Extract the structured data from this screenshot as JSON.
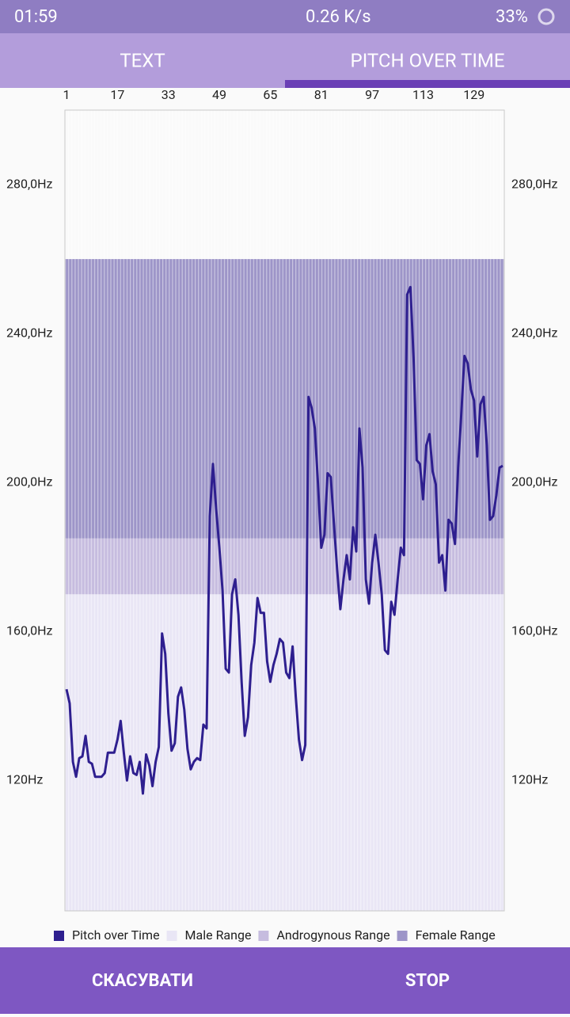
{
  "status_bar": {
    "time": "01:59",
    "speed": "0.26 K/s",
    "battery": "33%"
  },
  "tabs": [
    {
      "label": "TEXT"
    },
    {
      "label": "PITCH OVER TIME"
    }
  ],
  "chart_data": {
    "type": "line",
    "x": [
      1,
      2,
      3,
      4,
      5,
      6,
      7,
      8,
      9,
      10,
      11,
      12,
      13,
      14,
      15,
      16,
      17,
      18,
      19,
      20,
      21,
      22,
      23,
      24,
      25,
      26,
      27,
      28,
      29,
      30,
      31,
      32,
      33,
      34,
      35,
      36,
      37,
      38,
      39,
      40,
      41,
      42,
      43,
      44,
      45,
      46,
      47,
      48,
      49,
      50,
      51,
      52,
      53,
      54,
      55,
      56,
      57,
      58,
      59,
      60,
      61,
      62,
      63,
      64,
      65,
      66,
      67,
      68,
      69,
      70,
      71,
      72,
      73,
      74,
      75,
      76,
      77,
      78,
      79,
      80,
      81,
      82,
      83,
      84,
      85,
      86,
      87,
      88,
      89,
      90,
      91,
      92,
      93,
      94,
      95,
      96,
      97,
      98,
      99,
      100,
      101,
      102,
      103,
      104,
      105,
      106,
      107,
      108,
      109,
      110,
      111,
      112,
      113,
      114,
      115,
      116,
      117,
      118,
      119,
      120,
      121,
      122,
      123,
      124,
      125,
      126,
      127,
      128,
      129,
      130,
      131,
      132,
      133,
      134,
      135,
      136,
      137,
      138
    ],
    "xlim": [
      0.5,
      138.5
    ],
    "xticks": [
      1,
      17,
      33,
      49,
      65,
      81,
      97,
      113,
      129
    ],
    "ylim": [
      85,
      300
    ],
    "yticks": [
      {
        "value": 120,
        "label": "120Hz"
      },
      {
        "value": 160,
        "label": "160,0Hz"
      },
      {
        "value": 200,
        "label": "200,0Hz"
      },
      {
        "value": 240,
        "label": "240,0Hz"
      },
      {
        "value": 280,
        "label": "280,0Hz"
      }
    ],
    "series": [
      {
        "name": "Pitch over Time",
        "color": "#2e1f8f",
        "values": [
          144.5,
          140.7,
          125,
          121,
          126,
          126.5,
          132,
          125,
          124.5,
          121,
          121,
          121,
          122,
          127.5,
          127.5,
          127.5,
          131,
          136,
          127.5,
          120,
          126.5,
          122,
          121.5,
          125,
          116.5,
          127,
          124,
          118.5,
          125,
          129,
          159.5,
          154,
          138,
          128,
          130,
          142.5,
          145,
          139,
          128.5,
          123,
          125,
          126,
          125.5,
          135,
          134,
          191,
          205,
          193,
          182.5,
          171,
          150,
          149,
          170,
          174,
          164.5,
          146.5,
          132,
          137,
          151,
          157,
          169,
          165,
          165,
          152,
          146.5,
          151,
          154,
          158,
          157,
          149,
          147.5,
          156,
          142.5,
          131,
          125.5,
          129.5,
          223,
          220,
          214.5,
          199.5,
          182.5,
          186,
          202.5,
          201.5,
          189,
          176.5,
          166,
          174,
          180.5,
          174,
          188,
          181.5,
          214.5,
          204,
          174,
          167.5,
          178.5,
          186,
          178.5,
          170,
          155,
          154,
          168,
          164.5,
          174,
          182.5,
          180.5,
          250.5,
          252.5,
          233.5,
          206,
          205,
          195.5,
          210,
          213,
          203,
          199.5,
          178.5,
          180.5,
          171,
          190,
          189,
          183.5,
          204,
          218.5,
          234,
          232,
          225,
          222,
          207,
          221,
          223,
          210,
          190,
          191,
          196.5,
          204,
          204.5
        ]
      }
    ],
    "ranges": [
      {
        "name": "Male Range",
        "color": "#e9e6f5",
        "low": 85,
        "high": 170
      },
      {
        "name": "Androgynous Range",
        "color": "#c6bcdf",
        "low": 170,
        "high": 185
      },
      {
        "name": "Female Range",
        "color": "#9d95c8",
        "low": 185,
        "high": 260
      }
    ]
  },
  "buttons": [
    {
      "label": "СКАСУВАТИ"
    },
    {
      "label": "STOP"
    }
  ]
}
